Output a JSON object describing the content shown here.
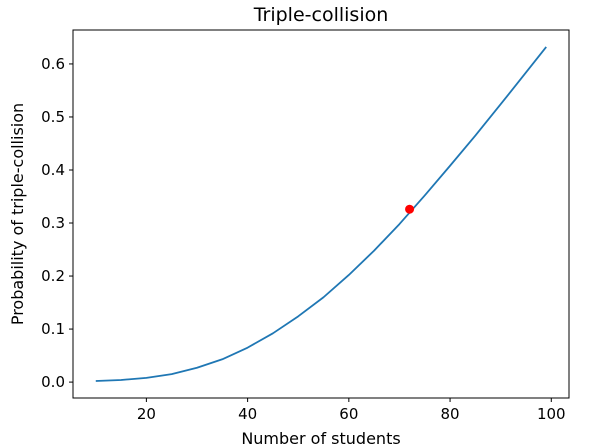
{
  "chart_data": {
    "type": "line",
    "title": "Triple-collision",
    "xlabel": "Number of students",
    "ylabel": "Probability of triple-collision",
    "xlim": [
      5.5,
      103.5
    ],
    "ylim": [
      -0.03,
      0.664
    ],
    "xticks": [
      20,
      40,
      60,
      80,
      100
    ],
    "xtick_labels": [
      "20",
      "40",
      "60",
      "80",
      "100"
    ],
    "yticks": [
      0.0,
      0.1,
      0.2,
      0.3,
      0.4,
      0.5,
      0.6
    ],
    "ytick_labels": [
      "0.0",
      "0.1",
      "0.2",
      "0.3",
      "0.4",
      "0.5",
      "0.6"
    ],
    "grid": false,
    "series": [
      {
        "color": "#1f77b4",
        "x": [
          10,
          15,
          20,
          25,
          30,
          35,
          40,
          45,
          50,
          55,
          60,
          65,
          70,
          75,
          80,
          85,
          90,
          95,
          99
        ],
        "y": [
          0.002,
          0.004,
          0.008,
          0.015,
          0.027,
          0.043,
          0.065,
          0.092,
          0.124,
          0.16,
          0.202,
          0.248,
          0.298,
          0.352,
          0.408,
          0.465,
          0.524,
          0.584,
          0.632
        ]
      }
    ],
    "highlight": {
      "color": "#ff0000",
      "x": 72,
      "y": 0.326
    }
  }
}
